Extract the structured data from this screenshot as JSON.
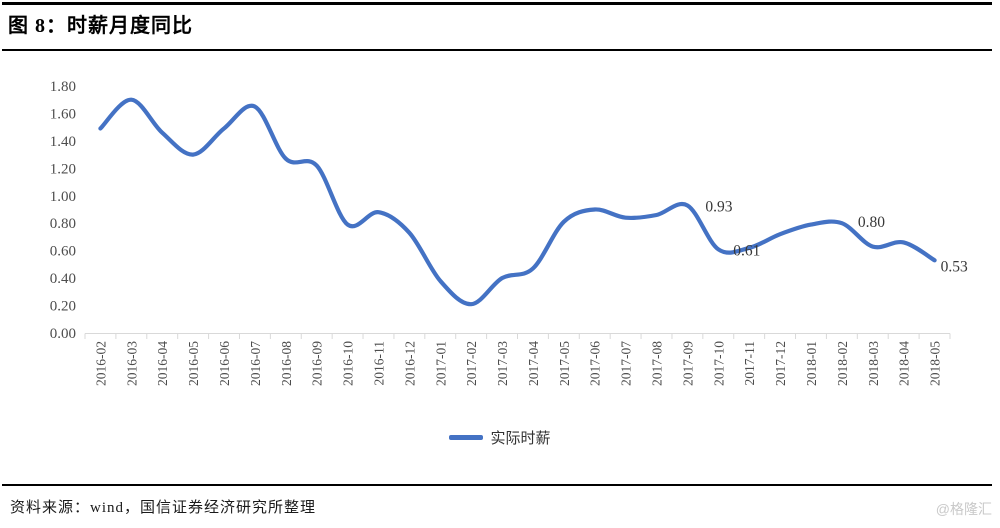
{
  "header": {
    "title": "图 8：时薪月度同比"
  },
  "legend": {
    "series_label": "实际时薪"
  },
  "footer": {
    "source": "资料来源：wind，国信证券经济研究所整理",
    "watermark": "@格隆汇"
  },
  "colors": {
    "line": "#4472C4",
    "axis_line": "#D9D9D9",
    "tick_label": "#4d4d4d",
    "data_label": "#383838"
  },
  "chart_data": {
    "type": "line",
    "title": "时薪月度同比",
    "xlabel": "",
    "ylabel": "",
    "ylim": [
      0,
      1.8
    ],
    "y_tick_labels": [
      "0.00",
      "0.20",
      "0.40",
      "0.60",
      "0.80",
      "1.00",
      "1.20",
      "1.40",
      "1.60",
      "1.80"
    ],
    "grid": false,
    "legend_position": "bottom",
    "categories": [
      "2016-02",
      "2016-03",
      "2016-04",
      "2016-05",
      "2016-06",
      "2016-07",
      "2016-08",
      "2016-09",
      "2016-10",
      "2016-11",
      "2016-12",
      "2017-01",
      "2017-02",
      "2017-03",
      "2017-04",
      "2017-05",
      "2017-06",
      "2017-07",
      "2017-08",
      "2017-09",
      "2017-10",
      "2017-11",
      "2017-12",
      "2018-01",
      "2018-02",
      "2018-03",
      "2018-04",
      "2018-05"
    ],
    "series": [
      {
        "name": "实际时薪",
        "values": [
          1.49,
          1.7,
          1.46,
          1.3,
          1.49,
          1.65,
          1.27,
          1.22,
          0.79,
          0.88,
          0.73,
          0.38,
          0.21,
          0.4,
          0.47,
          0.81,
          0.9,
          0.84,
          0.86,
          0.93,
          0.61,
          0.62,
          0.72,
          0.79,
          0.8,
          0.63,
          0.66,
          0.53
        ]
      }
    ],
    "point_labels": [
      {
        "index": 19,
        "text": "0.93"
      },
      {
        "index": 20,
        "text": "0.61"
      },
      {
        "index": 24,
        "text": "0.80"
      },
      {
        "index": 27,
        "text": "0.53"
      }
    ]
  }
}
